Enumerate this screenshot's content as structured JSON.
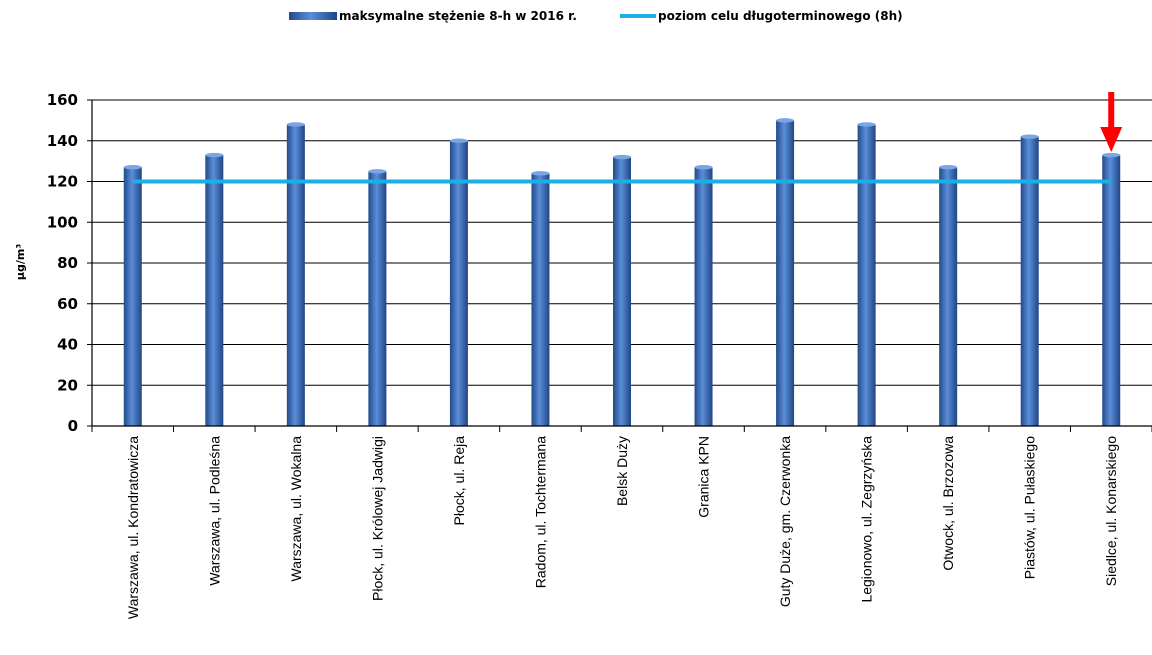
{
  "chart_data": {
    "type": "bar",
    "title": "",
    "xlabel": "",
    "ylabel": "µg/m³",
    "ylim": [
      0,
      160
    ],
    "yticks": [
      0,
      20,
      40,
      60,
      80,
      100,
      120,
      140,
      160
    ],
    "grid": true,
    "legend_position": "top",
    "categories": [
      "Warszawa, ul. Kondratowicza",
      "Warszawa, ul. Podleśna",
      "Warszawa, ul. Wokalna",
      "Płock, ul. Królowej Jadwigi",
      "Płock, ul. Reja",
      "Radom, ul. Tochtermana",
      "Belsk Duży",
      "Granica KPN",
      "Guty Duże, gm. Czerwonka",
      "Legionowo, ul. Zegrzyńska",
      "Otwock, ul. Brzozowa",
      "Piastów, ul. Pułaskiego",
      "Siedlce, ul. Konarskiego"
    ],
    "series": [
      {
        "name": "maksymalne stężenie 8-h w 2016 r.",
        "type": "bar",
        "color": "#3f73c4",
        "values": [
          127,
          133,
          148,
          125,
          140,
          124,
          132,
          127,
          150,
          148,
          127,
          142,
          133
        ]
      },
      {
        "name": "poziom celu długoterminowego (8h)",
        "type": "line",
        "color": "#19b0e8",
        "values": [
          120,
          120,
          120,
          120,
          120,
          120,
          120,
          120,
          120,
          120,
          120,
          120,
          120
        ]
      }
    ],
    "annotations": [
      {
        "type": "arrow",
        "target_category": "Siedlce, ul. Konarskiego",
        "color": "#ff0000"
      }
    ]
  }
}
